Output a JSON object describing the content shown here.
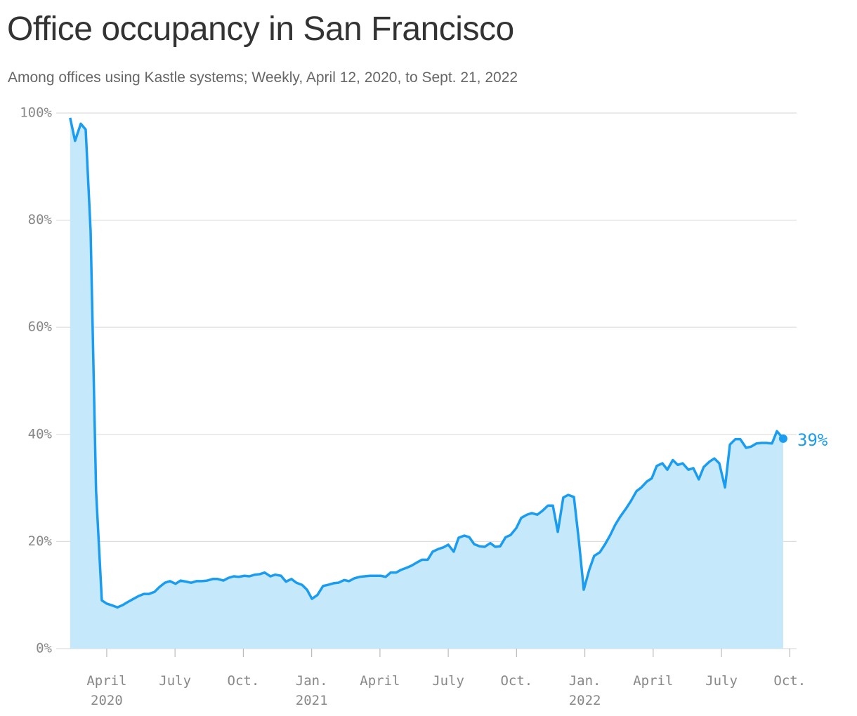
{
  "chart_data": {
    "type": "area",
    "title": "Office occupancy in San Francisco",
    "subtitle": "Among offices using Kastle systems; Weekly, April 12, 2020, to Sept. 21, 2022",
    "x": [
      2020.116,
      2020.134,
      2020.155,
      2020.173,
      2020.191,
      2020.211,
      2020.232,
      2020.25,
      2020.268,
      2020.289,
      2020.307,
      2020.327,
      2020.348,
      2020.366,
      2020.386,
      2020.404,
      2020.425,
      2020.443,
      2020.463,
      2020.481,
      2020.502,
      2020.52,
      2020.541,
      2020.559,
      2020.579,
      2020.597,
      2020.618,
      2020.638,
      2020.656,
      2020.677,
      2020.695,
      2020.715,
      2020.733,
      2020.754,
      2020.772,
      2020.792,
      2020.81,
      2020.828,
      2020.849,
      2020.867,
      2020.888,
      2020.906,
      2020.926,
      2020.944,
      2020.965,
      2020.983,
      2021.001,
      2021.021,
      2021.042,
      2021.06,
      2021.08,
      2021.098,
      2021.119,
      2021.137,
      2021.155,
      2021.176,
      2021.194,
      2021.214,
      2021.232,
      2021.253,
      2021.271,
      2021.289,
      2021.309,
      2021.327,
      2021.348,
      2021.366,
      2021.386,
      2021.404,
      2021.425,
      2021.443,
      2021.464,
      2021.482,
      2021.5,
      2021.52,
      2021.538,
      2021.559,
      2021.577,
      2021.595,
      2021.615,
      2021.633,
      2021.654,
      2021.672,
      2021.69,
      2021.71,
      2021.728,
      2021.749,
      2021.767,
      2021.788,
      2021.806,
      2021.826,
      2021.844,
      2021.865,
      2021.883,
      2021.901,
      2021.921,
      2021.939,
      2021.96,
      2021.978,
      2021.996,
      2022.016,
      2022.034,
      2022.055,
      2022.073,
      2022.093,
      2022.111,
      2022.129,
      2022.15,
      2022.168,
      2022.189,
      2022.207,
      2022.227,
      2022.245,
      2022.263,
      2022.284,
      2022.302,
      2022.322,
      2022.34,
      2022.358,
      2022.379,
      2022.397,
      2022.417,
      2022.435,
      2022.456,
      2022.474,
      2022.492,
      2022.513,
      2022.531,
      2022.551,
      2022.569,
      2022.59,
      2022.608,
      2022.628,
      2022.646,
      2022.664,
      2022.685,
      2022.703,
      2022.726
    ],
    "series": [
      {
        "color": "#1a9cf0",
        "fill": "#c6e8fb",
        "values": [
          99.1,
          94.8,
          98.0,
          96.9,
          77.9,
          29.4,
          9.0,
          8.4,
          8.1,
          7.7,
          8.1,
          8.7,
          9.3,
          9.8,
          10.2,
          10.2,
          10.6,
          11.5,
          12.3,
          12.6,
          12.1,
          12.7,
          12.5,
          12.3,
          12.6,
          12.6,
          12.7,
          13.0,
          13.0,
          12.7,
          13.2,
          13.5,
          13.4,
          13.6,
          13.5,
          13.8,
          13.9,
          14.2,
          13.5,
          13.8,
          13.6,
          12.5,
          13.0,
          12.3,
          11.9,
          11.0,
          9.3,
          10.0,
          11.7,
          11.9,
          12.2,
          12.3,
          12.8,
          12.6,
          13.1,
          13.4,
          13.5,
          13.6,
          13.6,
          13.6,
          13.4,
          14.2,
          14.2,
          14.7,
          15.1,
          15.5,
          16.1,
          16.6,
          16.6,
          18.1,
          18.6,
          18.9,
          19.4,
          18.1,
          20.7,
          21.1,
          20.8,
          19.5,
          19.1,
          19.0,
          19.7,
          19.0,
          19.1,
          20.8,
          21.2,
          22.5,
          24.4,
          25.0,
          25.3,
          25.0,
          25.7,
          26.7,
          26.7,
          21.8,
          28.2,
          28.7,
          28.3,
          20.2,
          11.0,
          14.7,
          17.3,
          18.0,
          19.4,
          21.2,
          23.1,
          24.6,
          26.1,
          27.5,
          29.4,
          30.1,
          31.2,
          31.8,
          34.1,
          34.6,
          33.4,
          35.2,
          34.3,
          34.6,
          33.4,
          33.7,
          31.6,
          33.9,
          34.9,
          35.5,
          34.6,
          30.1,
          38.1,
          39.1,
          39.1,
          37.5,
          37.7,
          38.3,
          38.4,
          38.4,
          38.3,
          40.6,
          39.2
        ],
        "value_labels": [
          null,
          null,
          null,
          null,
          null,
          null,
          null,
          null,
          null,
          null,
          null,
          null,
          null,
          null,
          null,
          null,
          null,
          null,
          null,
          null,
          null,
          null,
          null,
          null,
          null,
          null,
          null,
          null,
          null,
          null,
          null,
          null,
          null,
          null,
          null,
          null,
          null,
          null,
          null,
          null,
          null,
          null,
          null,
          null,
          null,
          null,
          null,
          null,
          null,
          null,
          null,
          null,
          null,
          null,
          null,
          null,
          null,
          null,
          null,
          null,
          null,
          null,
          null,
          null,
          null,
          null,
          null,
          null,
          null,
          null,
          null,
          null,
          null,
          null,
          null,
          null,
          null,
          null,
          null,
          null,
          null,
          null,
          null,
          null,
          null,
          null,
          null,
          null,
          null,
          null,
          null,
          null,
          null,
          null,
          null,
          null,
          null,
          null,
          null,
          null,
          null,
          null,
          null,
          null,
          null,
          null,
          null,
          null,
          null,
          null,
          null,
          null,
          null,
          null,
          null,
          null,
          null,
          null,
          null,
          null,
          null,
          null,
          null,
          null,
          null,
          null,
          null,
          null,
          null,
          null,
          null,
          null,
          null,
          null,
          null,
          null,
          "39%"
        ]
      }
    ],
    "xlim": [
      2020.065,
      2022.775
    ],
    "xticks": [
      {
        "value": 2020.25,
        "label": "April 2020"
      },
      {
        "value": 2020.5,
        "label": "July"
      },
      {
        "value": 2020.75,
        "label": "Oct."
      },
      {
        "value": 2021.0,
        "label": "Jan. 2021"
      },
      {
        "value": 2021.25,
        "label": "April"
      },
      {
        "value": 2021.5,
        "label": "July"
      },
      {
        "value": 2021.75,
        "label": "Oct."
      },
      {
        "value": 2022.0,
        "label": "Jan. 2022"
      },
      {
        "value": 2022.25,
        "label": "April"
      },
      {
        "value": 2022.5,
        "label": "July"
      },
      {
        "value": 2022.75,
        "label": "Oct."
      }
    ],
    "ylim": [
      0,
      100
    ],
    "yticks": [
      {
        "value": 0,
        "label": "0%"
      },
      {
        "value": 20,
        "label": "20%"
      },
      {
        "value": 40,
        "label": "40%"
      },
      {
        "value": 60,
        "label": "60%"
      },
      {
        "value": 80,
        "label": "80%"
      },
      {
        "value": 100,
        "label": "100%"
      }
    ],
    "grid": true
  }
}
